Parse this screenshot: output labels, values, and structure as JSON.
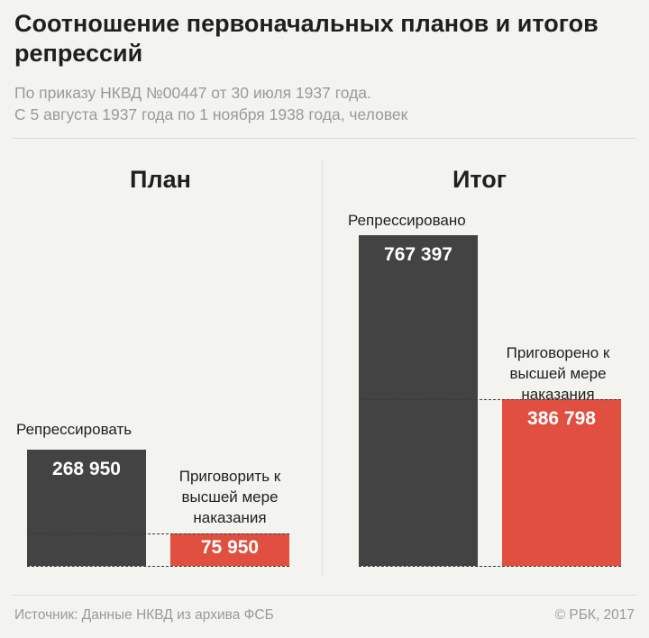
{
  "title": "Соотношение первоначальных планов и итогов репрессий",
  "subtitle_line1": "По приказу НКВД №00447 от 30 июля 1937 года.",
  "subtitle_line2": "С 5 августа 1937 года по 1 ноября 1938 года, человек",
  "footer": {
    "source": "Источник: Данные НКВД из архива ФСБ",
    "copyright": "© РБК, 2017"
  },
  "colors": {
    "total": "#434343",
    "execution": "#e04f3f",
    "background": "#f3f4ef"
  },
  "chart_data": [
    {
      "type": "bar",
      "title": "План",
      "categories": [
        "Репрессировать",
        "Приговорить к высшей мере наказания"
      ],
      "values": [
        268950,
        75950
      ],
      "value_labels": [
        "268 950",
        "75 950"
      ],
      "ylim": [
        0,
        767397
      ]
    },
    {
      "type": "bar",
      "title": "Итог",
      "categories": [
        "Репрессировано",
        "Приговорено к высшей мере наказания"
      ],
      "values": [
        767397,
        386798
      ],
      "value_labels": [
        "767 397",
        "386 798"
      ],
      "ylim": [
        0,
        767397
      ]
    }
  ]
}
